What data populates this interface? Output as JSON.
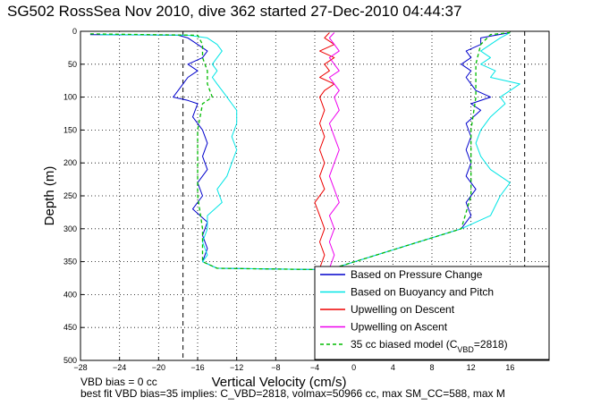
{
  "chart_data": {
    "type": "line",
    "title": "SG502 RossSea Nov 2010, dive 362 started 27-Dec-2010 04:44:37",
    "xlabel": "Vertical Velocity (cm/s)",
    "ylabel": "Depth (m)",
    "xlim": [
      -28,
      20
    ],
    "ylim": [
      500,
      0
    ],
    "y_reversed": true,
    "grid": true,
    "xticks": [
      -28,
      -24,
      -20,
      -16,
      -12,
      -8,
      -4,
      0,
      4,
      8,
      12,
      16
    ],
    "yticks": [
      0,
      50,
      100,
      150,
      200,
      250,
      300,
      350,
      400,
      450,
      500
    ],
    "vertical_dashed_lines": [
      -17.5,
      17.5
    ],
    "legend_position": "lower-right",
    "series": [
      {
        "name": "Based on Pressure Change",
        "color": "#0000cc",
        "style": "solid",
        "points": [
          [
            -27,
            5
          ],
          [
            -18,
            6
          ],
          [
            -17,
            10
          ],
          [
            -16,
            20
          ],
          [
            -15,
            30
          ],
          [
            -15.5,
            40
          ],
          [
            -17,
            50
          ],
          [
            -16,
            60
          ],
          [
            -17,
            70
          ],
          [
            -17.5,
            80
          ],
          [
            -18,
            90
          ],
          [
            -18.5,
            100
          ],
          [
            -17,
            105
          ],
          [
            -16,
            110
          ],
          [
            -16.5,
            130
          ],
          [
            -15.5,
            150
          ],
          [
            -15,
            170
          ],
          [
            -15.5,
            190
          ],
          [
            -15,
            210
          ],
          [
            -16,
            230
          ],
          [
            -15.5,
            250
          ],
          [
            -16.5,
            270
          ],
          [
            -15,
            290
          ],
          [
            -15.5,
            310
          ],
          [
            -15,
            330
          ],
          [
            -15.5,
            350
          ],
          [
            -14,
            360
          ],
          [
            -4,
            362
          ],
          [
            -2.5,
            362
          ],
          [
            11,
            300
          ],
          [
            12,
            280
          ],
          [
            11.5,
            260
          ],
          [
            12.5,
            240
          ],
          [
            11.5,
            220
          ],
          [
            12,
            200
          ],
          [
            11.5,
            180
          ],
          [
            12,
            160
          ],
          [
            11.5,
            140
          ],
          [
            13,
            120
          ],
          [
            12,
            110
          ],
          [
            14,
            100
          ],
          [
            12.5,
            90
          ],
          [
            12,
            80
          ],
          [
            11.5,
            70
          ],
          [
            12,
            60
          ],
          [
            11,
            50
          ],
          [
            12,
            40
          ],
          [
            11.5,
            30
          ],
          [
            13,
            20
          ],
          [
            13,
            10
          ],
          [
            16,
            2
          ]
        ]
      },
      {
        "name": "Based on Buoyancy and Pitch",
        "color": "#00e5e5",
        "style": "solid",
        "points": [
          [
            -26,
            5
          ],
          [
            -17,
            6
          ],
          [
            -15,
            10
          ],
          [
            -14,
            20
          ],
          [
            -13.5,
            30
          ],
          [
            -14,
            40
          ],
          [
            -14.5,
            50
          ],
          [
            -14,
            60
          ],
          [
            -14.5,
            70
          ],
          [
            -14,
            80
          ],
          [
            -13.5,
            90
          ],
          [
            -13,
            100
          ],
          [
            -12.5,
            110
          ],
          [
            -12,
            120
          ],
          [
            -12,
            140
          ],
          [
            -12.5,
            160
          ],
          [
            -12,
            180
          ],
          [
            -12.5,
            200
          ],
          [
            -13,
            220
          ],
          [
            -14,
            240
          ],
          [
            -13.5,
            260
          ],
          [
            -15,
            280
          ],
          [
            -15,
            300
          ],
          [
            -15.5,
            320
          ],
          [
            -15,
            340
          ],
          [
            -15.5,
            350
          ],
          [
            -14,
            360
          ],
          [
            -4,
            362
          ],
          [
            -2.5,
            362
          ],
          [
            11,
            300
          ],
          [
            14,
            280
          ],
          [
            15,
            250
          ],
          [
            16,
            230
          ],
          [
            14,
            210
          ],
          [
            13,
            190
          ],
          [
            12.5,
            170
          ],
          [
            13,
            150
          ],
          [
            14,
            130
          ],
          [
            15.5,
            110
          ],
          [
            15,
            100
          ],
          [
            17,
            80
          ],
          [
            14,
            70
          ],
          [
            14.5,
            60
          ],
          [
            13,
            50
          ],
          [
            14,
            40
          ],
          [
            13,
            30
          ],
          [
            14,
            20
          ],
          [
            15,
            10
          ],
          [
            16,
            2
          ]
        ]
      },
      {
        "name": "Upwelling on Descent",
        "color": "#ee0000",
        "style": "solid",
        "points": [
          [
            -2.5,
            2
          ],
          [
            -3,
            10
          ],
          [
            -2,
            20
          ],
          [
            -3.5,
            30
          ],
          [
            -2,
            40
          ],
          [
            -3,
            50
          ],
          [
            -2.5,
            60
          ],
          [
            -3.5,
            70
          ],
          [
            -2,
            80
          ],
          [
            -3,
            90
          ],
          [
            -3.5,
            100
          ],
          [
            -3,
            120
          ],
          [
            -3.5,
            140
          ],
          [
            -3,
            160
          ],
          [
            -3.5,
            180
          ],
          [
            -3,
            200
          ],
          [
            -3.5,
            220
          ],
          [
            -3,
            240
          ],
          [
            -4,
            260
          ],
          [
            -3.5,
            280
          ],
          [
            -3,
            300
          ],
          [
            -3.5,
            320
          ],
          [
            -3,
            340
          ],
          [
            -3.5,
            360
          ]
        ]
      },
      {
        "name": "Upwelling on Ascent",
        "color": "#ee00ee",
        "style": "solid",
        "points": [
          [
            -2.5,
            360
          ],
          [
            -2,
            340
          ],
          [
            -2.5,
            320
          ],
          [
            -2,
            300
          ],
          [
            -2.5,
            280
          ],
          [
            -1.5,
            260
          ],
          [
            -2,
            240
          ],
          [
            -2.5,
            220
          ],
          [
            -2,
            200
          ],
          [
            -1.5,
            180
          ],
          [
            -2,
            160
          ],
          [
            -2.5,
            140
          ],
          [
            -1.5,
            120
          ],
          [
            -2,
            100
          ],
          [
            -1.5,
            90
          ],
          [
            -2,
            80
          ],
          [
            -2.5,
            70
          ],
          [
            -1.5,
            60
          ],
          [
            -2,
            50
          ],
          [
            -2.5,
            40
          ],
          [
            -1.5,
            30
          ],
          [
            -2,
            20
          ],
          [
            -2.5,
            10
          ],
          [
            -2,
            2
          ]
        ]
      },
      {
        "name": "35 cc biased model (C",
        "name_sub": "VBD",
        "name_tail": "=2818)",
        "color": "#00bb00",
        "style": "dashed",
        "points": [
          [
            -27,
            4
          ],
          [
            -16,
            6
          ],
          [
            -15.5,
            20
          ],
          [
            -15.5,
            40
          ],
          [
            -15,
            60
          ],
          [
            -15,
            80
          ],
          [
            -14.5,
            100
          ],
          [
            -15.5,
            110
          ],
          [
            -16,
            150
          ],
          [
            -16,
            200
          ],
          [
            -16,
            250
          ],
          [
            -15.5,
            300
          ],
          [
            -15.5,
            350
          ],
          [
            -14,
            360
          ],
          [
            -4,
            362
          ],
          [
            -2.5,
            362
          ],
          [
            11,
            300
          ],
          [
            12,
            250
          ],
          [
            12,
            200
          ],
          [
            12,
            150
          ],
          [
            12.5,
            100
          ],
          [
            12.5,
            50
          ],
          [
            13,
            20
          ],
          [
            14,
            5
          ],
          [
            16,
            2
          ]
        ]
      }
    ]
  },
  "footer": {
    "line1": "VBD bias = 0 cc",
    "line2": "best fit VBD bias=35 implies: C_VBD=2818, volmax=50966 cc, max SM_CC=588, max M"
  }
}
